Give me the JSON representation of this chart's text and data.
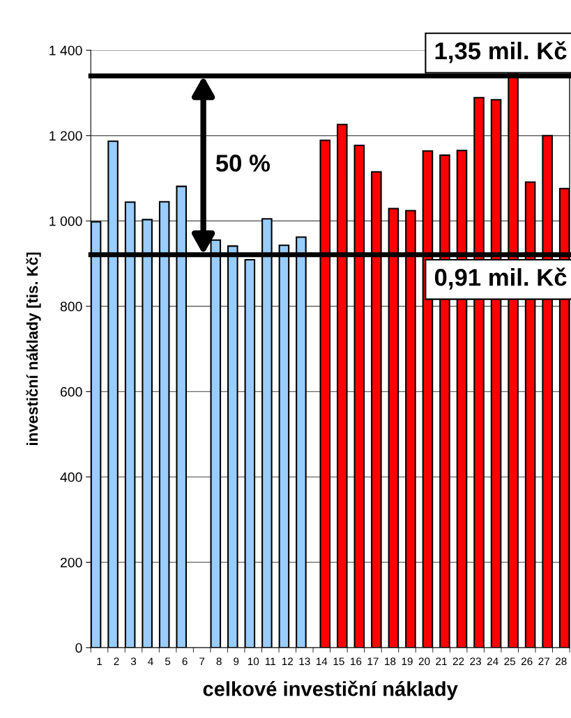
{
  "chart_data": {
    "type": "bar",
    "xlabel": "celkové investiční náklady",
    "ylabel": "investiční náklady [tis. Kč]",
    "categories": [
      "1",
      "2",
      "3",
      "4",
      "5",
      "6",
      "7",
      "8",
      "9",
      "10",
      "11",
      "12",
      "13",
      "14",
      "15",
      "16",
      "17",
      "18",
      "19",
      "20",
      "21",
      "22",
      "23",
      "24",
      "25",
      "26",
      "27",
      "28"
    ],
    "series": [
      {
        "color": "#99ccff",
        "values": [
          998,
          1187,
          1044,
          1003,
          1045,
          1081,
          null,
          955,
          941,
          909,
          1005,
          943,
          962,
          null,
          null,
          null,
          null,
          null,
          null,
          null,
          null,
          null,
          null,
          null,
          null,
          null,
          null,
          null
        ]
      },
      {
        "color": "#ff0000",
        "values": [
          null,
          null,
          null,
          null,
          null,
          null,
          null,
          null,
          null,
          null,
          null,
          null,
          null,
          1189,
          1226,
          1177,
          1115,
          1029,
          1024,
          1164,
          1154,
          1165,
          1289,
          1284,
          1348,
          1091,
          1200,
          1076
        ]
      }
    ],
    "ylim": [
      0,
      1400
    ],
    "yticks": [
      0,
      200,
      400,
      600,
      800,
      {
        "value": 1000,
        "label": "1 000"
      },
      {
        "value": 1200,
        "label": "1 200"
      },
      {
        "value": 1400,
        "label": "1 400"
      }
    ],
    "grid": "y",
    "ref_lines": [
      {
        "axis": "y",
        "value": 1340,
        "label": "1,35 mil. Kč",
        "color": "#000000",
        "line_style": "solid"
      },
      {
        "axis": "y",
        "value": 921,
        "label": "0,91 mil. Kč",
        "color": "#000000",
        "line_style": "solid"
      }
    ],
    "annotations": [
      "50 %"
    ]
  }
}
